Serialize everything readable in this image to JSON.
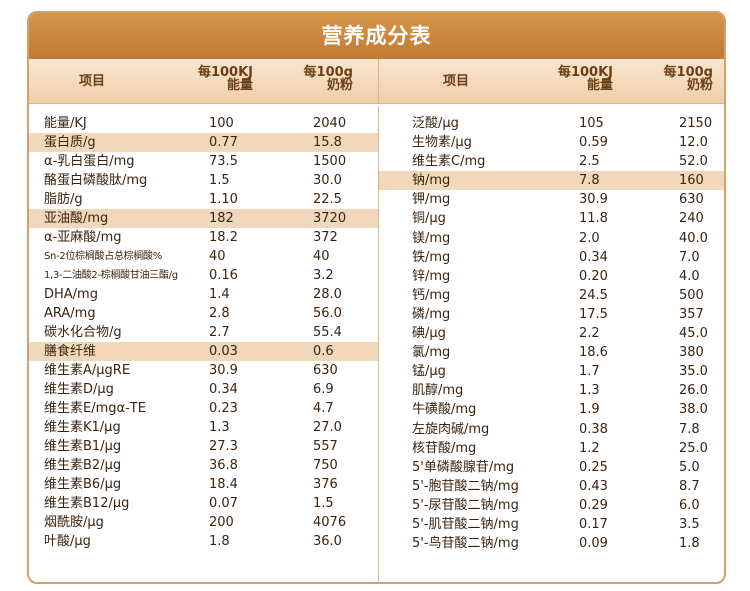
{
  "title": "营养成分表",
  "headers": {
    "item": "项目",
    "per_kj_line1": "每100KJ",
    "per_kj_line2": "能量",
    "per_g_line1": "每100g",
    "per_g_line2": "奶粉"
  },
  "left_rows": [
    {
      "name": "能量/KJ",
      "kj": "100",
      "g": "2040",
      "highlight": false
    },
    {
      "name": "蛋白质/g",
      "kj": "0.77",
      "g": "15.8",
      "highlight": true
    },
    {
      "name": "α-乳白蛋白/mg",
      "kj": "73.5",
      "g": "1500",
      "highlight": false
    },
    {
      "name": "酪蛋白磷酸肽/mg",
      "kj": "1.5",
      "g": "30.0",
      "highlight": false
    },
    {
      "name": "脂肪/g",
      "kj": "1.10",
      "g": "22.5",
      "highlight": false
    },
    {
      "name": "亚油酸/mg",
      "kj": "182",
      "g": "3720",
      "highlight": true
    },
    {
      "name": "α-亚麻酸/mg",
      "kj": "18.2",
      "g": "372",
      "highlight": false
    },
    {
      "name": "Sn-2位棕榈酸占总棕榈酸%",
      "kj": "40",
      "g": "40",
      "highlight": false,
      "small": true
    },
    {
      "name": "1,3-二油酸2-棕榈酸甘油三酯/g",
      "kj": "0.16",
      "g": "3.2",
      "highlight": false,
      "small": true
    },
    {
      "name": "DHA/mg",
      "kj": "1.4",
      "g": "28.0",
      "highlight": false
    },
    {
      "name": "ARA/mg",
      "kj": "2.8",
      "g": "56.0",
      "highlight": false
    },
    {
      "name": "碳水化合物/g",
      "kj": "2.7",
      "g": "55.4",
      "highlight": false
    },
    {
      "name": "膳食纤维",
      "kj": "0.03",
      "g": "0.6",
      "highlight": true
    },
    {
      "name": "维生素A/μgRE",
      "kj": "30.9",
      "g": "630",
      "highlight": false
    },
    {
      "name": "维生素D/μg",
      "kj": "0.34",
      "g": "6.9",
      "highlight": false
    },
    {
      "name": "维生素E/mgα-TE",
      "kj": "0.23",
      "g": "4.7",
      "highlight": false
    },
    {
      "name": "维生素K1/μg",
      "kj": "1.3",
      "g": "27.0",
      "highlight": false
    },
    {
      "name": "维生素B1/μg",
      "kj": "27.3",
      "g": "557",
      "highlight": false
    },
    {
      "name": "维生素B2/μg",
      "kj": "36.8",
      "g": "750",
      "highlight": false
    },
    {
      "name": "维生素B6/μg",
      "kj": "18.4",
      "g": "376",
      "highlight": false
    },
    {
      "name": "维生素B12/μg",
      "kj": "0.07",
      "g": "1.5",
      "highlight": false
    },
    {
      "name": "烟酰胺/μg",
      "kj": "200",
      "g": "4076",
      "highlight": false
    },
    {
      "name": "叶酸/μg",
      "kj": "1.8",
      "g": "36.0",
      "highlight": false
    }
  ],
  "right_rows": [
    {
      "name": "泛酸/μg",
      "kj": "105",
      "g": "2150",
      "highlight": false
    },
    {
      "name": "生物素/μg",
      "kj": "0.59",
      "g": "12.0",
      "highlight": false
    },
    {
      "name": "维生素C/mg",
      "kj": "2.5",
      "g": "52.0",
      "highlight": false
    },
    {
      "name": "钠/mg",
      "kj": "7.8",
      "g": "160",
      "highlight": true
    },
    {
      "name": "钾/mg",
      "kj": "30.9",
      "g": "630",
      "highlight": false
    },
    {
      "name": "铜/μg",
      "kj": "11.8",
      "g": "240",
      "highlight": false
    },
    {
      "name": "镁/mg",
      "kj": "2.0",
      "g": "40.0",
      "highlight": false
    },
    {
      "name": "铁/mg",
      "kj": "0.34",
      "g": "7.0",
      "highlight": false
    },
    {
      "name": "锌/mg",
      "kj": "0.20",
      "g": "4.0",
      "highlight": false
    },
    {
      "name": "钙/mg",
      "kj": "24.5",
      "g": "500",
      "highlight": false
    },
    {
      "name": "磷/mg",
      "kj": "17.5",
      "g": "357",
      "highlight": false
    },
    {
      "name": "碘/μg",
      "kj": "2.2",
      "g": "45.0",
      "highlight": false
    },
    {
      "name": "氯/mg",
      "kj": "18.6",
      "g": "380",
      "highlight": false
    },
    {
      "name": "锰/μg",
      "kj": "1.7",
      "g": "35.0",
      "highlight": false
    },
    {
      "name": "肌醇/mg",
      "kj": "1.3",
      "g": "26.0",
      "highlight": false
    },
    {
      "name": "牛磺酸/mg",
      "kj": "1.9",
      "g": "38.0",
      "highlight": false
    },
    {
      "name": "左旋肉碱/mg",
      "kj": "0.38",
      "g": "7.8",
      "highlight": false
    },
    {
      "name": "核苷酸/mg",
      "kj": "1.2",
      "g": "25.0",
      "highlight": false
    },
    {
      "name": "5'单磷酸腺苷/mg",
      "kj": "0.25",
      "g": "5.0",
      "highlight": false
    },
    {
      "name": "5'-胞苷酸二钠/mg",
      "kj": "0.43",
      "g": "8.7",
      "highlight": false
    },
    {
      "name": "5'-尿苷酸二钠/mg",
      "kj": "0.29",
      "g": "6.0",
      "highlight": false
    },
    {
      "name": "5'-肌苷酸二钠/mg",
      "kj": "0.17",
      "g": "3.5",
      "highlight": false
    },
    {
      "name": "5'-鸟苷酸二钠/mg",
      "kj": "0.09",
      "g": "1.8",
      "highlight": false
    }
  ]
}
